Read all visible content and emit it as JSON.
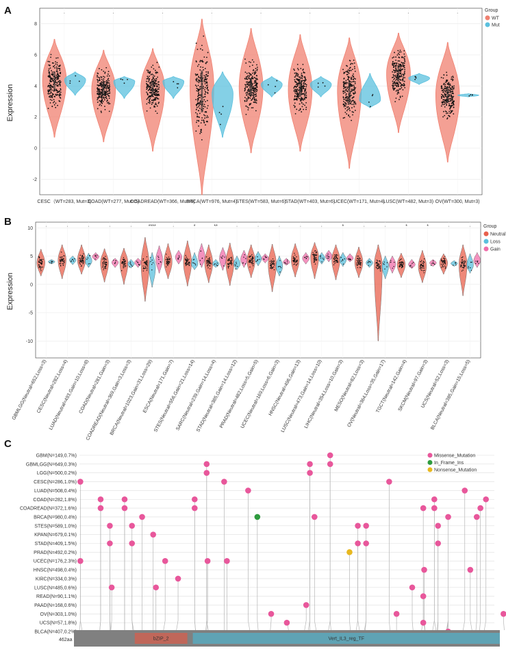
{
  "chart_data": [
    {
      "panel": "A",
      "type": "violin",
      "ylabel": "Expression",
      "ylim": [
        -3,
        9
      ],
      "yticks": [
        -2,
        0,
        2,
        4,
        6,
        8
      ],
      "legend_title": "Group",
      "legend_placement": "top-right",
      "groups": [
        {
          "name": "WT",
          "color": "#F08070"
        },
        {
          "name": "Mut",
          "color": "#5BC0DE"
        }
      ],
      "categories": [
        {
          "label": "CESC（WT=283, Mut=3)",
          "sig": "·",
          "WT": {
            "min": 0.7,
            "q1": 3.7,
            "median": 4.3,
            "q3": 4.9,
            "max": 7.0,
            "peak": 4.4
          },
          "Mut": {
            "min": 3.4,
            "median": 4.3,
            "max": 4.9,
            "peak": 4.4
          }
        },
        {
          "label": "COAD(WT=277, Mut=5)",
          "sig": "·",
          "WT": {
            "min": 0.4,
            "q1": 3.4,
            "median": 3.8,
            "q3": 4.2,
            "max": 6.3,
            "peak": 3.8
          },
          "Mut": {
            "min": 3.2,
            "median": 4.2,
            "max": 4.6,
            "peak": 4.3
          }
        },
        {
          "label": "COADREAD(WT=366, Mut=5)",
          "sig": "·",
          "WT": {
            "min": -0.2,
            "q1": 3.4,
            "median": 3.8,
            "q3": 4.3,
            "max": 6.4,
            "peak": 3.9
          },
          "Mut": {
            "min": 3.2,
            "median": 4.2,
            "max": 4.6,
            "peak": 4.3
          }
        },
        {
          "label": "BRCA(WT=976, Mut=4)",
          "sig": "·",
          "WT": {
            "min": -3.0,
            "q1": 2.3,
            "median": 3.8,
            "q3": 5.0,
            "max": 8.3,
            "peak": 4.0
          },
          "Mut": {
            "min": 0.7,
            "median": 2.5,
            "max": 4.9,
            "peak": 3.5
          }
        },
        {
          "label": "STES(WT=583, Mut=6)",
          "sig": "·",
          "WT": {
            "min": -0.3,
            "q1": 3.4,
            "median": 3.9,
            "q3": 4.5,
            "max": 7.7,
            "peak": 3.9
          },
          "Mut": {
            "min": 3.3,
            "median": 4.1,
            "max": 4.6,
            "peak": 4.1
          }
        },
        {
          "label": "STAD(WT=403, Mut=6)",
          "sig": "·",
          "WT": {
            "min": -0.2,
            "q1": 3.3,
            "median": 3.8,
            "q3": 4.3,
            "max": 7.3,
            "peak": 3.8
          },
          "Mut": {
            "min": 3.3,
            "median": 4.1,
            "max": 4.6,
            "peak": 4.1
          }
        },
        {
          "label": "UCEC(WT=171, Mut=4)",
          "sig": "·",
          "WT": {
            "min": -1.3,
            "q1": 2.8,
            "median": 3.6,
            "q3": 4.3,
            "max": 7.1,
            "peak": 3.7
          },
          "Mut": {
            "min": 2.6,
            "median": 3.0,
            "max": 4.8,
            "peak": 3.1
          }
        },
        {
          "label": "LUSC(WT=482, Mut=3)",
          "sig": "·",
          "WT": {
            "min": 1.0,
            "q1": 4.3,
            "median": 4.8,
            "q3": 5.3,
            "max": 7.4,
            "peak": 4.8
          },
          "Mut": {
            "min": 4.1,
            "median": 4.5,
            "max": 4.8,
            "peak": 4.5
          }
        },
        {
          "label": "OV(WT=300, Mut=3)",
          "sig": "·",
          "WT": {
            "min": -0.9,
            "q1": 2.9,
            "median": 3.4,
            "q3": 3.9,
            "max": 6.8,
            "peak": 3.4
          },
          "Mut": {
            "min": 3.3,
            "median": 3.4,
            "max": 3.5,
            "peak": 3.4
          }
        }
      ]
    },
    {
      "panel": "B",
      "type": "violin",
      "ylabel": "Expression",
      "ylim": [
        -13,
        11
      ],
      "yticks": [
        -10,
        -5,
        0,
        5,
        10
      ],
      "legend_title": "Group",
      "legend_placement": "top-right",
      "groups": [
        {
          "name": "Neutral",
          "color": "#E8604C"
        },
        {
          "name": "Loss",
          "color": "#5BC0DE"
        },
        {
          "name": "Gain",
          "color": "#F06EAA"
        }
      ],
      "categories": [
        {
          "label": "GBMLGG(Neutral=652,Loss=3)",
          "sig": "·",
          "Neutral": {
            "min": 1.5,
            "median": 3.8,
            "max": 6.2
          },
          "Loss": {
            "min": 3.6,
            "median": 4.0,
            "max": 4.4
          }
        },
        {
          "label": "CESC(Neutral=282,Loss=4)",
          "sig": "·",
          "Neutral": {
            "min": 1.0,
            "median": 4.3,
            "max": 7.0
          },
          "Loss": {
            "min": 3.5,
            "median": 4.3,
            "max": 5.0
          }
        },
        {
          "label": "LUAD(Neutral=493,Gain=10,Loss=8)",
          "sig": "·",
          "Neutral": {
            "min": 1.8,
            "median": 4.3,
            "max": 7.0
          },
          "Loss": {
            "min": 3.0,
            "median": 4.1,
            "max": 5.5
          },
          "Gain": {
            "min": 4.2,
            "median": 4.9,
            "max": 5.6
          }
        },
        {
          "label": "COAD(Neutral=281,Gain=3)",
          "sig": "·",
          "Neutral": {
            "min": 0.4,
            "median": 3.8,
            "max": 6.3
          },
          "Gain": {
            "min": 3.0,
            "median": 3.9,
            "max": 4.6
          }
        },
        {
          "label": "COADREAD(Neutral=369,Gain=3,Loss=3)",
          "sig": "·",
          "Neutral": {
            "min": 0.0,
            "median": 3.8,
            "max": 6.4
          },
          "Loss": {
            "min": 2.9,
            "median": 3.6,
            "max": 4.4
          },
          "Gain": {
            "min": 3.0,
            "median": 3.9,
            "max": 4.6
          }
        },
        {
          "label": "BRCA(Neutral=1023,Gain=31,Loss=29)",
          "sig": "****",
          "Neutral": {
            "min": -3.0,
            "median": 3.6,
            "max": 8.3
          },
          "Loss": {
            "min": -0.5,
            "median": 3.0,
            "max": 5.6
          },
          "Gain": {
            "min": 2.0,
            "median": 4.4,
            "max": 6.8
          }
        },
        {
          "label": "ESCA(Neutral=171,Gain=7)",
          "sig": "·",
          "Neutral": {
            "min": 1.0,
            "median": 4.0,
            "max": 7.2
          },
          "Gain": {
            "min": 3.6,
            "median": 4.8,
            "max": 6.0
          }
        },
        {
          "label": "STES(Neutral=556,Gain=21,Loss=14)",
          "sig": "*",
          "Neutral": {
            "min": -0.3,
            "median": 3.9,
            "max": 7.7
          },
          "Loss": {
            "min": 2.6,
            "median": 3.6,
            "max": 5.6
          },
          "Gain": {
            "min": 3.0,
            "median": 4.8,
            "max": 7.2
          }
        },
        {
          "label": "SARC(Neutral=239,Gain=14,Loss=4)",
          "sig": "**",
          "Neutral": {
            "min": 0.3,
            "median": 3.8,
            "max": 7.0
          },
          "Loss": {
            "min": 3.0,
            "median": 3.6,
            "max": 4.4
          },
          "Gain": {
            "min": 2.5,
            "median": 4.6,
            "max": 6.5
          }
        },
        {
          "label": "STAD(Neutral=385,Gain=14,Loss=12)",
          "sig": "·",
          "Neutral": {
            "min": -0.2,
            "median": 3.8,
            "max": 7.3
          },
          "Loss": {
            "min": 2.6,
            "median": 3.6,
            "max": 5.0
          },
          "Gain": {
            "min": 3.0,
            "median": 4.4,
            "max": 6.0
          }
        },
        {
          "label": "PRAD(Neutral=482,Loss=5,Gain=5)",
          "sig": "·",
          "Neutral": {
            "min": 1.2,
            "median": 4.2,
            "max": 7.0
          },
          "Loss": {
            "min": 3.3,
            "median": 4.5,
            "max": 5.8
          },
          "Gain": {
            "min": 3.8,
            "median": 4.6,
            "max": 5.4
          }
        },
        {
          "label": "UCEC(Neutral=169,Loss=6,Gain=3)",
          "sig": "·",
          "Neutral": {
            "min": -1.3,
            "median": 3.6,
            "max": 7.1
          },
          "Loss": {
            "min": 1.5,
            "median": 3.2,
            "max": 5.0
          },
          "Gain": {
            "min": 3.4,
            "median": 3.9,
            "max": 4.6
          }
        },
        {
          "label": "HNSC(Neutral=496,Gain=13)",
          "sig": "·",
          "Neutral": {
            "min": 1.3,
            "median": 4.4,
            "max": 7.2
          },
          "Gain": {
            "min": 3.6,
            "median": 4.6,
            "max": 5.6
          }
        },
        {
          "label": "LUSC(Neutral=473,Gain=14,Loss=10)",
          "sig": "·",
          "Neutral": {
            "min": 1.0,
            "median": 4.8,
            "max": 7.4
          },
          "Loss": {
            "min": 3.6,
            "median": 4.6,
            "max": 5.6
          },
          "Gain": {
            "min": 4.0,
            "median": 5.0,
            "max": 6.0
          }
        },
        {
          "label": "LIHC(Neutral=354,Loss=10,Gain=3)",
          "sig": "*",
          "Neutral": {
            "min": 0.8,
            "median": 4.4,
            "max": 7.0
          },
          "Loss": {
            "min": 3.2,
            "median": 4.3,
            "max": 5.6
          },
          "Gain": {
            "min": 4.0,
            "median": 4.6,
            "max": 5.4
          }
        },
        {
          "label": "MESO(Neutral=82,Loss=3)",
          "sig": "·",
          "Neutral": {
            "min": 1.2,
            "median": 3.9,
            "max": 6.6
          },
          "Loss": {
            "min": 3.0,
            "median": 3.8,
            "max": 4.6
          }
        },
        {
          "label": "OV(Neutral=364,Loss=35,Gain=17)",
          "sig": "·",
          "Neutral": {
            "min": -10.0,
            "median": 3.4,
            "max": 7.0
          },
          "Loss": {
            "min": 1.0,
            "median": 3.2,
            "max": 5.0
          },
          "Gain": {
            "min": 2.0,
            "median": 3.6,
            "max": 5.0
          }
        },
        {
          "label": "TGCT(Neutral=142,Gain=4)",
          "sig": "*",
          "Neutral": {
            "min": 1.2,
            "median": 3.5,
            "max": 5.5
          },
          "Gain": {
            "min": 2.8,
            "median": 3.5,
            "max": 4.4
          }
        },
        {
          "label": "SKCM(Neutral=97,Gain=3)",
          "sig": "*",
          "Neutral": {
            "min": 0.3,
            "median": 3.2,
            "max": 6.0
          },
          "Gain": {
            "min": 3.2,
            "median": 3.8,
            "max": 4.4
          }
        },
        {
          "label": "UCS(Neutral=52,Loss=3)",
          "sig": "·",
          "Neutral": {
            "min": 1.8,
            "median": 3.8,
            "max": 5.4
          },
          "Loss": {
            "min": 3.2,
            "median": 3.7,
            "max": 4.2
          }
        },
        {
          "label": "BLCA(Neutral=385,Gain=15,Loss=5)",
          "sig": "·",
          "Neutral": {
            "min": -2.0,
            "median": 3.6,
            "max": 7.0
          },
          "Loss": {
            "min": 2.0,
            "median": 3.4,
            "max": 5.4
          },
          "Gain": {
            "min": 3.0,
            "median": 4.2,
            "max": 5.6
          }
        }
      ]
    },
    {
      "panel": "C",
      "type": "lollipop",
      "protein_length_label": "462aa",
      "protein_length": 462,
      "domains": [
        {
          "name": "bZIP_2",
          "start": 60,
          "end": 123,
          "color": "#C0675A"
        },
        {
          "name": "Vert_IL3_reg_TF",
          "start": 123,
          "end": 462,
          "color": "#5FA3B4"
        }
      ],
      "legend": [
        {
          "name": "Missense_Mutation",
          "color": "#E8579B"
        },
        {
          "name": "In_Frame_Ins",
          "color": "#2E9B3E"
        },
        {
          "name": "Nonsense_Mutation",
          "color": "#E8B820"
        }
      ],
      "rows": [
        "GBM(N=149,0.7%)",
        "GBMLGG(N=649,0.3%)",
        "LGG(N=500,0.2%)",
        "CESC(N=286,1.0%)",
        "LUAD(N=508,0.4%)",
        "COAD(N=282,1.8%)",
        "COADREAD(N=372,1.6%)",
        "BRCA(N=980,0.4%)",
        "STES(N=589,1.0%)",
        "KPAN(N=679,0.1%)",
        "STAD(N=409,1.5%)",
        "PRAD(N=492,0.2%)",
        "UCEC(N=176,2.3%)",
        "HNSC(N=498,0.4%)",
        "KIRC(N=334,0.3%)",
        "LUSC(N=485,0.6%)",
        "READ(N=90,1.1%)",
        "PAAD(N=168,0.6%)",
        "OV(N=303,1.0%)",
        "UCS(N=57,1.8%)",
        "BLCA(N=407,0.2%)"
      ],
      "mutations": [
        {
          "row": 0,
          "pos": 272,
          "type": "Missense_Mutation"
        },
        {
          "row": 1,
          "pos": 138,
          "type": "Missense_Mutation"
        },
        {
          "row": 1,
          "pos": 250,
          "type": "Missense_Mutation"
        },
        {
          "row": 1,
          "pos": 272,
          "type": "Missense_Mutation"
        },
        {
          "row": 2,
          "pos": 138,
          "type": "Missense_Mutation"
        },
        {
          "row": 2,
          "pos": 250,
          "type": "Missense_Mutation"
        },
        {
          "row": 3,
          "pos": 1,
          "type": "Missense_Mutation"
        },
        {
          "row": 3,
          "pos": 157,
          "type": "Missense_Mutation"
        },
        {
          "row": 3,
          "pos": 336,
          "type": "Missense_Mutation"
        },
        {
          "row": 4,
          "pos": 183,
          "type": "Missense_Mutation"
        },
        {
          "row": 4,
          "pos": 418,
          "type": "Missense_Mutation"
        },
        {
          "row": 5,
          "pos": 23,
          "type": "Missense_Mutation"
        },
        {
          "row": 5,
          "pos": 49,
          "type": "Missense_Mutation"
        },
        {
          "row": 5,
          "pos": 125,
          "type": "Missense_Mutation"
        },
        {
          "row": 5,
          "pos": 385,
          "type": "Missense_Mutation"
        },
        {
          "row": 5,
          "pos": 441,
          "type": "Missense_Mutation"
        },
        {
          "row": 6,
          "pos": 23,
          "type": "Missense_Mutation"
        },
        {
          "row": 6,
          "pos": 49,
          "type": "Missense_Mutation"
        },
        {
          "row": 6,
          "pos": 125,
          "type": "Missense_Mutation"
        },
        {
          "row": 6,
          "pos": 373,
          "type": "Missense_Mutation"
        },
        {
          "row": 6,
          "pos": 385,
          "type": "Missense_Mutation"
        },
        {
          "row": 6,
          "pos": 435,
          "type": "Missense_Mutation"
        },
        {
          "row": 7,
          "pos": 68,
          "type": "Missense_Mutation"
        },
        {
          "row": 7,
          "pos": 193,
          "type": "In_Frame_Ins"
        },
        {
          "row": 7,
          "pos": 255,
          "type": "Missense_Mutation"
        },
        {
          "row": 7,
          "pos": 400,
          "type": "Missense_Mutation"
        },
        {
          "row": 7,
          "pos": 431,
          "type": "Missense_Mutation"
        },
        {
          "row": 8,
          "pos": 33,
          "type": "Missense_Mutation"
        },
        {
          "row": 8,
          "pos": 57,
          "type": "Missense_Mutation"
        },
        {
          "row": 8,
          "pos": 302,
          "type": "Missense_Mutation"
        },
        {
          "row": 8,
          "pos": 311,
          "type": "Missense_Mutation"
        },
        {
          "row": 8,
          "pos": 389,
          "type": "Missense_Mutation"
        },
        {
          "row": 9,
          "pos": 80,
          "type": "Missense_Mutation"
        },
        {
          "row": 10,
          "pos": 33,
          "type": "Missense_Mutation"
        },
        {
          "row": 10,
          "pos": 57,
          "type": "Missense_Mutation"
        },
        {
          "row": 10,
          "pos": 302,
          "type": "Missense_Mutation"
        },
        {
          "row": 10,
          "pos": 311,
          "type": "Missense_Mutation"
        },
        {
          "row": 10,
          "pos": 389,
          "type": "Missense_Mutation"
        },
        {
          "row": 11,
          "pos": 293,
          "type": "Nonsense_Mutation"
        },
        {
          "row": 12,
          "pos": 1,
          "type": "Missense_Mutation"
        },
        {
          "row": 12,
          "pos": 93,
          "type": "Missense_Mutation"
        },
        {
          "row": 12,
          "pos": 139,
          "type": "Missense_Mutation"
        },
        {
          "row": 12,
          "pos": 160,
          "type": "Missense_Mutation"
        },
        {
          "row": 13,
          "pos": 374,
          "type": "Missense_Mutation"
        },
        {
          "row": 13,
          "pos": 424,
          "type": "Missense_Mutation"
        },
        {
          "row": 14,
          "pos": 107,
          "type": "Missense_Mutation"
        },
        {
          "row": 15,
          "pos": 35,
          "type": "Missense_Mutation"
        },
        {
          "row": 15,
          "pos": 83,
          "type": "Missense_Mutation"
        },
        {
          "row": 15,
          "pos": 361,
          "type": "Missense_Mutation"
        },
        {
          "row": 16,
          "pos": 373,
          "type": "Missense_Mutation"
        },
        {
          "row": 17,
          "pos": 246,
          "type": "Missense_Mutation"
        },
        {
          "row": 18,
          "pos": 208,
          "type": "Missense_Mutation"
        },
        {
          "row": 18,
          "pos": 344,
          "type": "Missense_Mutation"
        },
        {
          "row": 18,
          "pos": 460,
          "type": "Missense_Mutation"
        },
        {
          "row": 19,
          "pos": 225,
          "type": "Missense_Mutation"
        },
        {
          "row": 19,
          "pos": 373,
          "type": "Missense_Mutation"
        },
        {
          "row": 20,
          "pos": 400,
          "type": "Missense_Mutation"
        }
      ]
    }
  ]
}
